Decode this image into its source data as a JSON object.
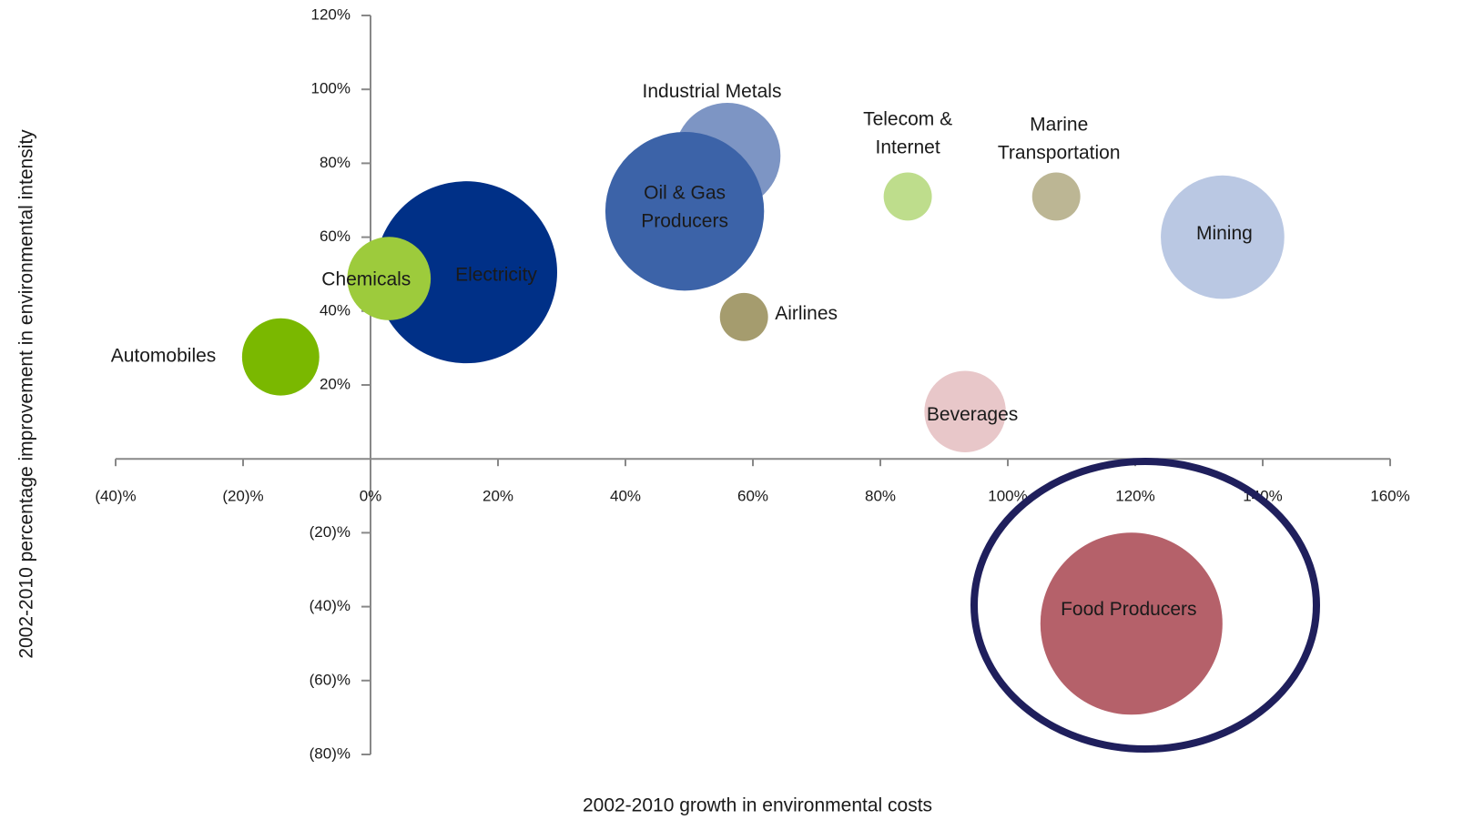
{
  "chart_data": {
    "type": "bubble",
    "x_label": "2002-2010 growth in environmental costs",
    "y_label": "2002-2010 percentage improvement in environmental intensity",
    "xlim": [
      -40,
      160
    ],
    "ylim": [
      -80,
      120
    ],
    "xticks": [
      {
        "value": -40,
        "label": "(40)%"
      },
      {
        "value": -20,
        "label": "(20)%"
      },
      {
        "value": 0,
        "label": "0%"
      },
      {
        "value": 20,
        "label": "20%"
      },
      {
        "value": 40,
        "label": "40%"
      },
      {
        "value": 60,
        "label": "60%"
      },
      {
        "value": 80,
        "label": "80%"
      },
      {
        "value": 100,
        "label": "100%"
      },
      {
        "value": 120,
        "label": "120%"
      },
      {
        "value": 140,
        "label": "140%"
      },
      {
        "value": 160,
        "label": "160%"
      }
    ],
    "yticks": [
      {
        "value": -80,
        "label": "(80)%"
      },
      {
        "value": -60,
        "label": "(60)%"
      },
      {
        "value": -40,
        "label": "(40)%"
      },
      {
        "value": -20,
        "label": "(20)%"
      },
      {
        "value": 20,
        "label": "20%"
      },
      {
        "value": 40,
        "label": "40%"
      },
      {
        "value": 60,
        "label": "60%"
      },
      {
        "value": 80,
        "label": "80%"
      },
      {
        "value": 100,
        "label": "100%"
      },
      {
        "value": 120,
        "label": "120%"
      }
    ],
    "series": [
      {
        "name": [
          "Automobiles"
        ],
        "color": "#7ab800",
        "x": -14.1,
        "y": 27.6,
        "size": 18
      },
      {
        "name": [
          "Electricity"
        ],
        "color": "#003087",
        "x": 15,
        "y": 50.5,
        "size": 100
      },
      {
        "name": [
          "Chemicals"
        ],
        "color": "#9dcb3c",
        "x": 2.9,
        "y": 48.8,
        "size": 21
      },
      {
        "name": [
          "Industrial Metals"
        ],
        "color": "#7d95c4",
        "x": 56,
        "y": 82,
        "size": 34
      },
      {
        "name": [
          "Oil & Gas",
          "Producers"
        ],
        "color": "#3c63a8",
        "x": 49.3,
        "y": 67,
        "size": 76
      },
      {
        "name": [
          "Airlines"
        ],
        "color": "#a59c6e",
        "x": 58.6,
        "y": 38.4,
        "size": 7
      },
      {
        "name": [
          "Telecom &",
          "Internet"
        ],
        "color": "#bedd8c",
        "x": 84.3,
        "y": 71,
        "size": 7
      },
      {
        "name": [
          "Marine",
          "Transportation"
        ],
        "color": "#bcb694",
        "x": 107.6,
        "y": 71,
        "size": 7
      },
      {
        "name": [
          "Mining"
        ],
        "color": "#bac8e3",
        "x": 133.7,
        "y": 60,
        "size": 46
      },
      {
        "name": [
          "Beverages"
        ],
        "color": "#e8c7c9",
        "x": 93.3,
        "y": 12.8,
        "size": 20
      },
      {
        "name": [
          "Food Producers"
        ],
        "color": "#b5616a",
        "x": 119.4,
        "y": -44.6,
        "size": 100
      }
    ]
  }
}
